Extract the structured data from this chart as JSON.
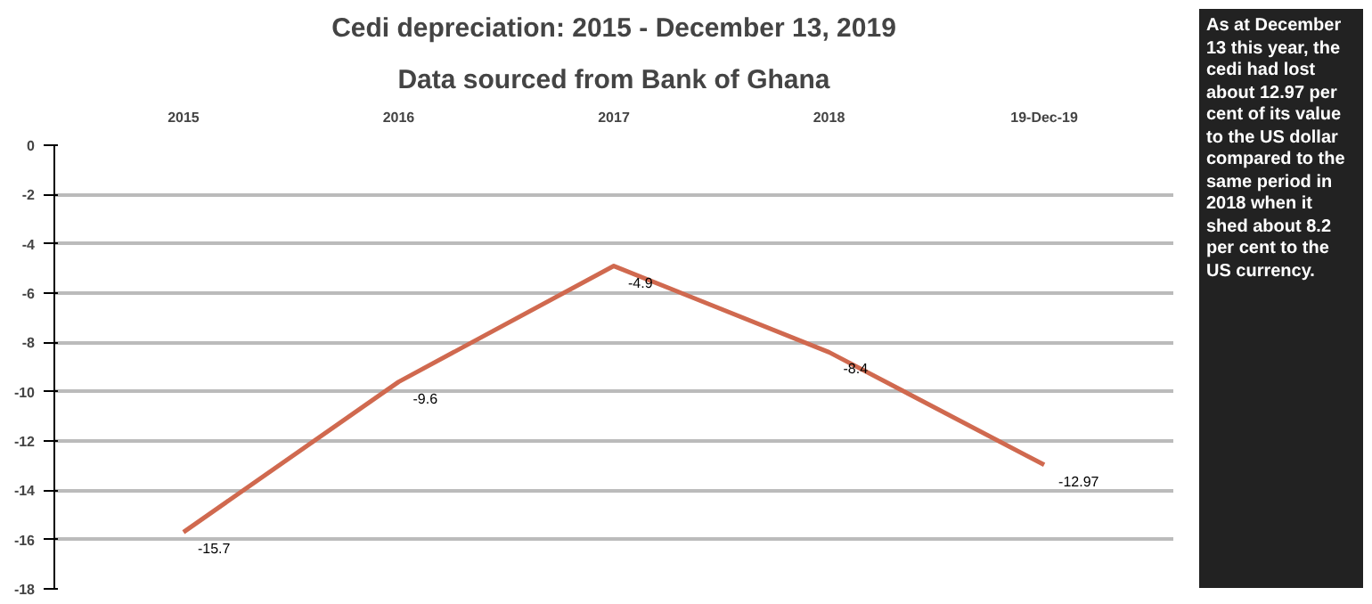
{
  "chart_data": {
    "type": "line",
    "title": "Cedi depreciation: 2015 - December 13, 2019",
    "subtitle": "Data sourced from Bank of Ghana",
    "categories": [
      "2015",
      "2016",
      "2017",
      "2018",
      "19-Dec-19"
    ],
    "series": [
      {
        "color": "#d0694f",
        "values": [
          -15.7,
          -9.6,
          -4.9,
          -8.4,
          -12.97
        ]
      }
    ],
    "ylim": [
      -18,
      0
    ],
    "yticks": [
      0,
      -2,
      -4,
      -6,
      -8,
      -10,
      -12,
      -14,
      -16,
      -18
    ],
    "grid": "y",
    "data_labels": true,
    "marker": "none",
    "line_style": "solid",
    "annotations": [
      "As at December 13 this year, the cedi had lost about 12.97 per cent of its value to the US dollar compared to the same period in 2018 when it shed about 8.2 per cent to the US currency."
    ]
  }
}
